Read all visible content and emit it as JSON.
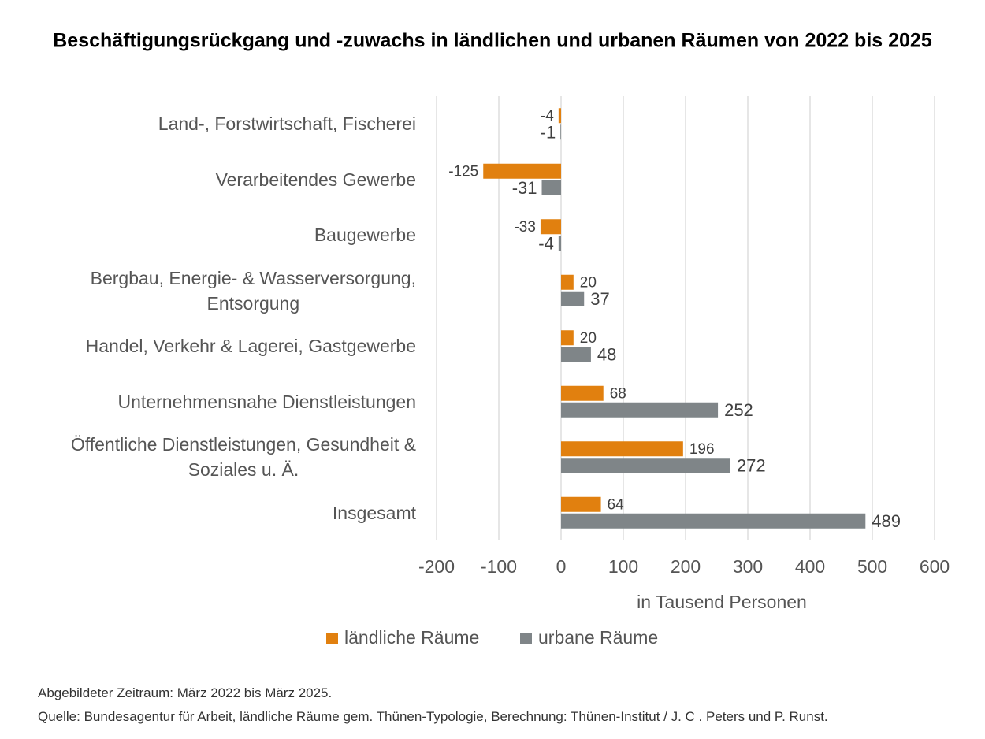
{
  "chart_data": {
    "type": "bar",
    "orientation": "horizontal",
    "title": "Beschäftigungsrückgang und -zuwachs in ländlichen und urbanen Räumen von 2022 bis 2025",
    "categories": [
      "Land-, Forstwirtschaft, Fischerei",
      "Verarbeitendes Gewerbe",
      "Baugewerbe",
      "Bergbau, Energie- & Wasserversorgung,\nEntsorgung",
      "Handel, Verkehr & Lagerei, Gastgewerbe",
      "Unternehmensnahe Dienstleistungen",
      "Öffentliche Dienstleistungen, Gesundheit &\nSoziales u. Ä.",
      "Insgesamt"
    ],
    "series": [
      {
        "name": "ländliche Räume",
        "color": "#e1800f",
        "values": [
          -4,
          -125,
          -33,
          20,
          20,
          68,
          196,
          64
        ]
      },
      {
        "name": "urbane Räume",
        "color": "#7f8588",
        "values": [
          -1,
          -31,
          -4,
          37,
          48,
          252,
          272,
          489
        ]
      }
    ],
    "xlabel": "in Tausend Personen",
    "xlim": [
      -200,
      600
    ],
    "xticks": [
      -200,
      -100,
      0,
      100,
      200,
      300,
      400,
      500,
      600
    ],
    "grid": true,
    "legend": "bottom",
    "notes": [
      "Abgebildeter Zeitraum: März 2022 bis März 2025.",
      "Quelle: Bundesagentur für Arbeit, ländliche Räume gem. Thünen-Typologie, Berechnung: Thünen-Institut / J. C . Peters und P. Runst."
    ]
  }
}
